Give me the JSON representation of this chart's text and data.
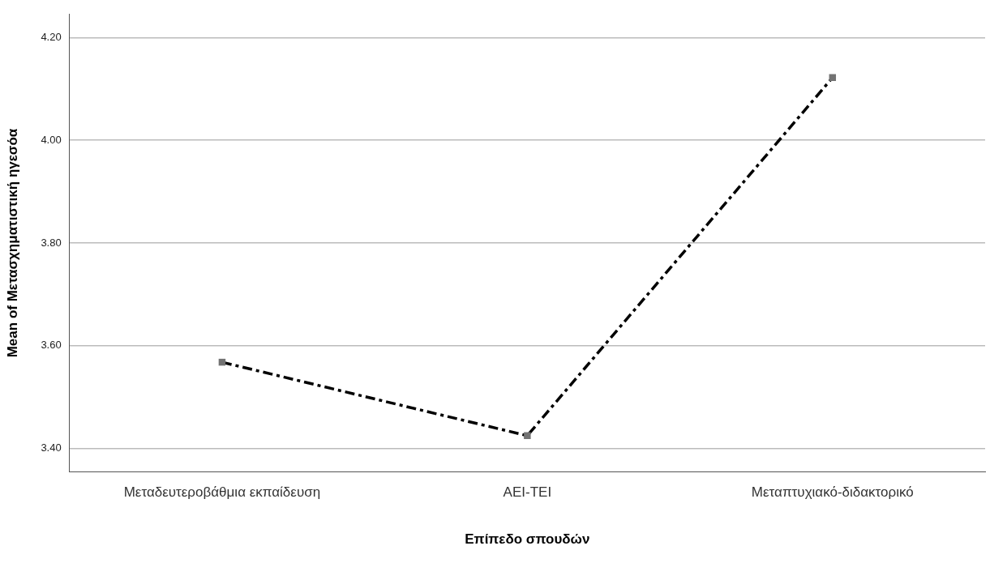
{
  "chart_data": {
    "type": "line",
    "xlabel": "Επίπεδο σπουδών",
    "ylabel": "Mean of Μετασχηματιστική ηγεσόα",
    "categories": [
      "Μεταδευτεροβάθμια εκπαίδευση",
      "ΑΕΙ-ΤΕΙ",
      "Μεταπτυχιακό-διδακτορικό"
    ],
    "series": [
      {
        "color": "#000000",
        "colors": [
          "#737373",
          "#737373",
          "#737373"
        ],
        "values": [
          3.568,
          3.425,
          4.122
        ]
      }
    ],
    "ylim": [
      3.355,
      4.245
    ],
    "yticks": [
      {
        "value": 3.4,
        "label": "3.40"
      },
      {
        "value": 3.6,
        "label": "3.60"
      },
      {
        "value": 3.8,
        "label": "3.80"
      },
      {
        "value": 4.0,
        "label": "4.00"
      },
      {
        "value": 4.2,
        "label": "4.20"
      }
    ],
    "grid": "y",
    "legend": false,
    "marker": "square",
    "line_style": "dashed"
  }
}
